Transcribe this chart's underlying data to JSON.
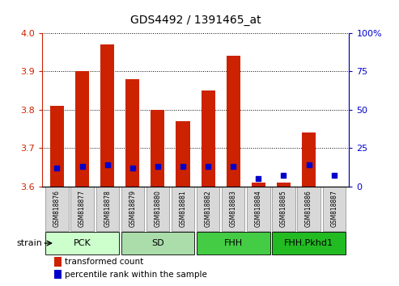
{
  "title": "GDS4492 / 1391465_at",
  "samples": [
    "GSM818876",
    "GSM818877",
    "GSM818878",
    "GSM818879",
    "GSM818880",
    "GSM818881",
    "GSM818882",
    "GSM818883",
    "GSM818884",
    "GSM818885",
    "GSM818886",
    "GSM818887"
  ],
  "red_values": [
    3.81,
    3.9,
    3.97,
    3.88,
    3.8,
    3.77,
    3.85,
    3.94,
    3.61,
    3.61,
    3.74,
    3.6
  ],
  "blue_values_pct": [
    12,
    13,
    14,
    12,
    13,
    13,
    13,
    13,
    5,
    7,
    14,
    7
  ],
  "ylim": [
    3.6,
    4.0
  ],
  "y2lim": [
    0,
    100
  ],
  "yticks": [
    3.6,
    3.7,
    3.8,
    3.9,
    4.0
  ],
  "y2ticks": [
    0,
    25,
    50,
    75,
    100
  ],
  "groups": [
    {
      "label": "PCK",
      "start": 0,
      "end": 3
    },
    {
      "label": "SD",
      "start": 3,
      "end": 6
    },
    {
      "label": "FHH",
      "start": 6,
      "end": 9
    },
    {
      "label": "FHH.Pkhd1",
      "start": 9,
      "end": 12
    }
  ],
  "group_colors": [
    "#ccffcc",
    "#aaddaa",
    "#44cc44",
    "#22bb22"
  ],
  "bar_bottom": 3.6,
  "red_color": "#cc2200",
  "blue_color": "#0000cc",
  "bar_width": 0.55,
  "legend_red": "transformed count",
  "legend_blue": "percentile rank within the sample",
  "left_tick_color": "#cc2200",
  "right_tick_color": "#0000cc"
}
